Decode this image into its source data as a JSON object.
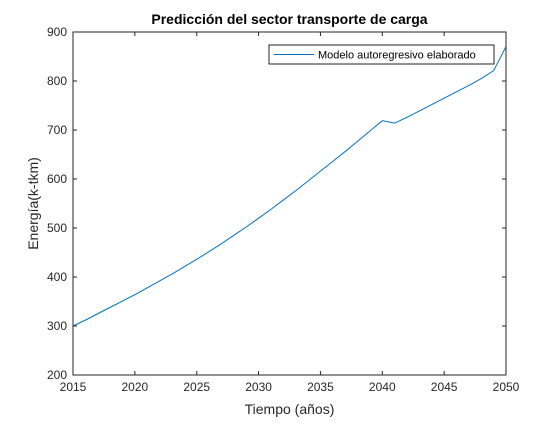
{
  "chart_data": {
    "type": "line",
    "title": "Predicción del sector transporte de carga",
    "xlabel": "Tiempo (años)",
    "ylabel": "Energía(k-tkm)",
    "xlim": [
      2015,
      2050
    ],
    "ylim": [
      200,
      900
    ],
    "xticks": [
      2015,
      2020,
      2025,
      2030,
      2035,
      2040,
      2045,
      2050
    ],
    "yticks": [
      200,
      300,
      400,
      500,
      600,
      700,
      800,
      900
    ],
    "grid": false,
    "legend_position": "top-right",
    "series": [
      {
        "name": "Modelo autoregresivo elaborado",
        "color": "#0072BD",
        "x": [
          2015,
          2016,
          2017,
          2018,
          2019,
          2020,
          2021,
          2022,
          2023,
          2024,
          2025,
          2026,
          2027,
          2028,
          2029,
          2030,
          2031,
          2032,
          2033,
          2034,
          2035,
          2036,
          2037,
          2038,
          2039,
          2040,
          2041,
          2042,
          2043,
          2044,
          2045,
          2046,
          2047,
          2048,
          2049,
          2050
        ],
        "y": [
          300,
          312,
          325,
          338,
          351,
          364,
          378,
          392,
          406,
          421,
          436,
          452,
          468,
          485,
          502,
          520,
          538,
          557,
          576,
          596,
          616,
          636,
          656,
          677,
          698,
          719,
          714,
          726,
          739,
          752,
          765,
          778,
          791,
          805,
          821,
          870
        ]
      }
    ]
  }
}
